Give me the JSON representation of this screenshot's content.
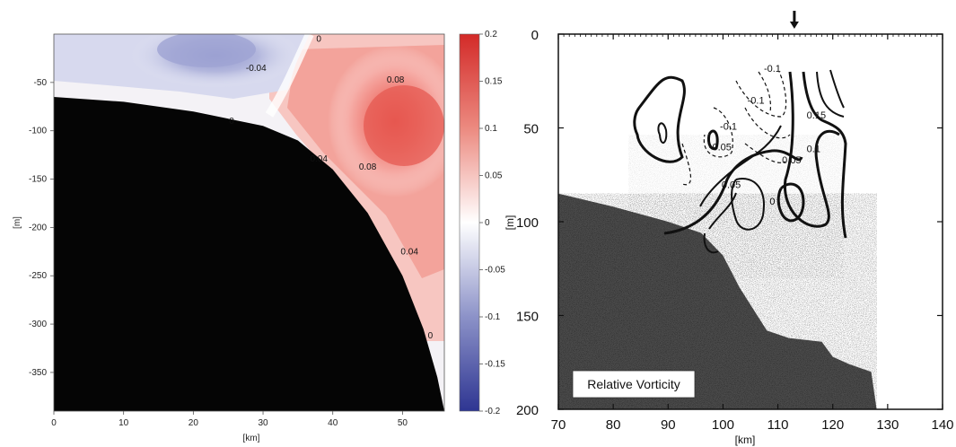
{
  "chart_data": [
    {
      "type": "contour",
      "xlabel": "[km]",
      "ylabel": "[m]",
      "xlim": [
        0,
        56
      ],
      "ylim": [
        -390,
        0
      ],
      "x_ticks": [
        0,
        10,
        20,
        30,
        40,
        50
      ],
      "y_ticks": [
        -50,
        -100,
        -150,
        -200,
        -250,
        -300,
        -350
      ],
      "colorbar": {
        "range": [
          -0.2,
          0.2
        ],
        "ticks": [
          "0.2",
          "0.15",
          "0.1",
          "0.05",
          "0",
          "-0.05",
          "-0.1",
          "-0.15",
          "-0.2"
        ],
        "colors": {
          "positive": "#d8312e",
          "negative": "#3a3f9e",
          "zero": "#ffffff"
        }
      },
      "contour_labels": [
        {
          "text": "-0.04",
          "x": 29,
          "y": -38
        },
        {
          "text": "0",
          "x": 38,
          "y": -8
        },
        {
          "text": "0.08",
          "x": 49,
          "y": -50
        },
        {
          "text": "0",
          "x": 25.5,
          "y": -93
        },
        {
          "text": "0.04",
          "x": 38,
          "y": -132
        },
        {
          "text": "0.08",
          "x": 45,
          "y": -140
        },
        {
          "text": "0.04",
          "x": 51,
          "y": -228
        },
        {
          "text": "0",
          "x": 54,
          "y": -315
        }
      ],
      "bathymetry": [
        [
          0,
          -65
        ],
        [
          10,
          -70
        ],
        [
          20,
          -80
        ],
        [
          30,
          -95
        ],
        [
          35,
          -110
        ],
        [
          40,
          -140
        ],
        [
          45,
          -185
        ],
        [
          50,
          -250
        ],
        [
          53,
          -305
        ],
        [
          55,
          -355
        ],
        [
          56,
          -390
        ]
      ]
    },
    {
      "type": "contour",
      "title": "Relative Vorticity",
      "xlabel": "[km]",
      "ylabel": "[m]",
      "xlim": [
        70,
        140
      ],
      "ylim": [
        200,
        0
      ],
      "x_ticks": [
        70,
        80,
        90,
        100,
        110,
        120,
        130,
        140
      ],
      "y_ticks": [
        0,
        50,
        100,
        150,
        200
      ],
      "annotation_arrow_x": 113,
      "contour_labels": [
        {
          "text": "-0.1",
          "x": 109,
          "y": 20
        },
        {
          "text": "-0.1",
          "x": 106,
          "y": 37
        },
        {
          "text": "-0.1",
          "x": 101,
          "y": 51
        },
        {
          "text": "-0.05",
          "x": 99.5,
          "y": 62
        },
        {
          "text": "0.15",
          "x": 117,
          "y": 45
        },
        {
          "text": "0.1",
          "x": 116.5,
          "y": 63
        },
        {
          "text": "0.05",
          "x": 112.5,
          "y": 69
        },
        {
          "text": "0.05",
          "x": 101.5,
          "y": 82
        },
        {
          "text": "0",
          "x": 109,
          "y": 91
        }
      ],
      "bathymetry": [
        [
          70,
          85
        ],
        [
          80,
          92
        ],
        [
          90,
          100
        ],
        [
          96,
          106
        ],
        [
          100,
          118
        ],
        [
          103,
          135
        ],
        [
          108,
          158
        ],
        [
          112,
          162
        ],
        [
          118,
          164
        ],
        [
          120,
          172
        ],
        [
          123,
          176
        ],
        [
          127,
          180
        ],
        [
          128,
          200
        ]
      ]
    }
  ]
}
